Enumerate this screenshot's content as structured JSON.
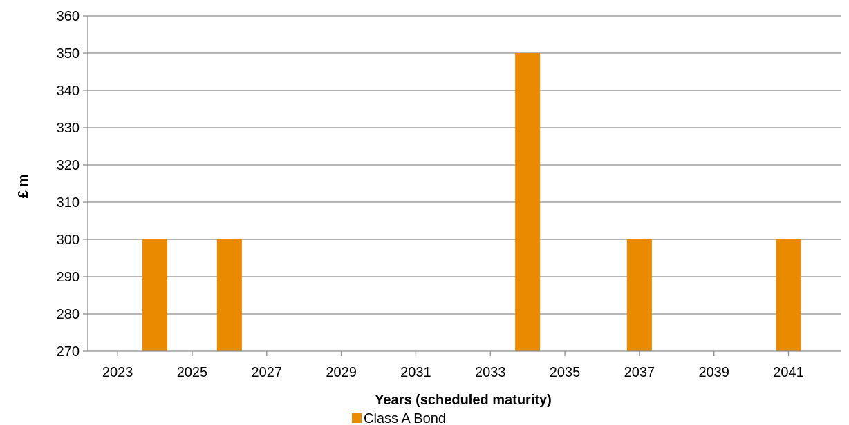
{
  "chart_data": {
    "type": "bar",
    "title": "",
    "xlabel": "Years (scheduled maturity)",
    "ylabel": "£ m",
    "x_ticks": [
      "2023",
      "2025",
      "2027",
      "2029",
      "2031",
      "2033",
      "2035",
      "2037",
      "2039",
      "2041"
    ],
    "y_ticks": [
      "270",
      "280",
      "290",
      "300",
      "310",
      "320",
      "330",
      "340",
      "350",
      "360"
    ],
    "ylim": [
      270,
      360
    ],
    "xlim": [
      2022.2,
      2042.4
    ],
    "grid": true,
    "legend_position": "bottom",
    "series": [
      {
        "name": "Class A Bond",
        "color": "#E98A00",
        "points": [
          {
            "x": 2024,
            "y": 300
          },
          {
            "x": 2026,
            "y": 300
          },
          {
            "x": 2034,
            "y": 350
          },
          {
            "x": 2037,
            "y": 300
          },
          {
            "x": 2041,
            "y": 300
          }
        ]
      }
    ]
  }
}
